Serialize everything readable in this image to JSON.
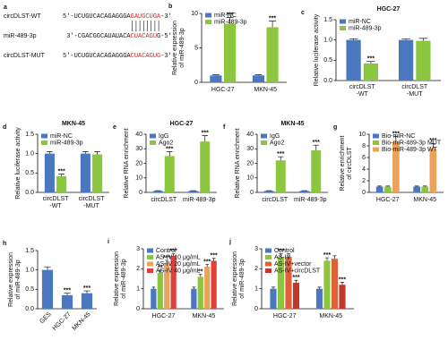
{
  "sequence_panel": {
    "label": "a",
    "rows": [
      {
        "name": "circDLST-WT",
        "prefix": "5'-UCUGUCACAGAGGGA",
        "highlight": "GAUGCUGA",
        "suffix": "-3'"
      },
      {
        "name": "miR-489-3p",
        "prefix": "3'-CGACGGCAUAUACA",
        "highlight": "CUACAGU",
        "suffix": "G-5'"
      },
      {
        "name": "circDLST-MUT",
        "prefix": "5'-UCUGUCACAGAGGGA",
        "highlight": "CUACAGUG",
        "suffix": "-3'"
      }
    ]
  },
  "chart_data": [
    {
      "type": "bar",
      "label": "b",
      "ylabel": [
        "Relative expression",
        "of miR-489-3p"
      ],
      "categories": [
        "HGC-27",
        "MKN-45"
      ],
      "series": [
        {
          "name": "miR-NC",
          "color": "#4a77c0",
          "values": [
            1,
            1
          ],
          "errors": [
            0.1,
            0.1
          ],
          "stars": [
            null,
            null
          ]
        },
        {
          "name": "miR-489-3p",
          "color": "#8cc63e",
          "values": [
            8.5,
            8
          ],
          "errors": [
            0.9,
            0.9
          ],
          "stars": [
            "***",
            "***"
          ]
        }
      ],
      "ylim": [
        0,
        10
      ],
      "yticks": [
        0,
        5,
        10
      ],
      "legend": "top-left"
    },
    {
      "type": "bar",
      "label": "c",
      "title": "HGC-27",
      "ylabel": [
        "Relative luciferase activity"
      ],
      "categories": [
        [
          "circDLST",
          "-WT"
        ],
        [
          "circDLST",
          "-MUT"
        ]
      ],
      "series": [
        {
          "name": "miR-NC",
          "color": "#4a77c0",
          "values": [
            1,
            1
          ],
          "errors": [
            0.03,
            0.03
          ],
          "stars": [
            null,
            null
          ]
        },
        {
          "name": "miR-489-3p",
          "color": "#8cc63e",
          "values": [
            0.42,
            0.98
          ],
          "errors": [
            0.05,
            0.06
          ],
          "stars": [
            "***",
            null
          ]
        }
      ],
      "ylim": [
        0,
        1.5
      ],
      "yticks": [
        {
          "value": 0,
          "label": "0.0"
        },
        {
          "value": 0.5,
          "label": "0.5"
        },
        {
          "value": 1,
          "label": "1.0"
        },
        {
          "value": 1.5,
          "label": "1.5"
        }
      ],
      "legend": "top-left"
    },
    {
      "type": "bar",
      "label": "d",
      "title": "MKN-45",
      "ylabel": [
        "Relative luciferase activity"
      ],
      "categories": [
        [
          "circDLST",
          "-WT"
        ],
        [
          "circDLST",
          "-MUT"
        ]
      ],
      "series": [
        {
          "name": "miR-NC",
          "color": "#4a77c0",
          "values": [
            1,
            1
          ],
          "errors": [
            0.05,
            0.05
          ],
          "stars": [
            null,
            null
          ]
        },
        {
          "name": "miR-489-3p",
          "color": "#8cc63e",
          "values": [
            0.42,
            0.98
          ],
          "errors": [
            0.05,
            0.07
          ],
          "stars": [
            "***",
            null
          ]
        }
      ],
      "ylim": [
        0,
        1.5
      ],
      "yticks": [
        {
          "value": 0,
          "label": "0.0"
        },
        {
          "value": 0.5,
          "label": "0.5"
        },
        {
          "value": 1,
          "label": "1.0"
        },
        {
          "value": 1.5,
          "label": "1.5"
        }
      ],
      "legend": "top-left"
    },
    {
      "type": "bar",
      "label": "e",
      "title": "HGC-27",
      "ylabel": [
        "Relative RNA enrichment"
      ],
      "categories": [
        "circDLST",
        "miR-489-3p"
      ],
      "series": [
        {
          "name": "IgG",
          "color": "#4a77c0",
          "values": [
            1,
            1
          ],
          "errors": [
            0.2,
            0.2
          ],
          "stars": [
            null,
            null
          ]
        },
        {
          "name": "Ago2",
          "color": "#8cc63e",
          "values": [
            25,
            35
          ],
          "errors": [
            3,
            4
          ],
          "stars": [
            "***",
            "***"
          ]
        }
      ],
      "ylim": [
        0,
        40
      ],
      "yticks": [
        0,
        10,
        20,
        30,
        40
      ],
      "legend": "top-left"
    },
    {
      "type": "bar",
      "label": "f",
      "title": "MKN-45",
      "ylabel": [
        "Relative RNA enrichment"
      ],
      "categories": [
        "circDLST",
        "miR-489-3p"
      ],
      "series": [
        {
          "name": "IgG",
          "color": "#4a77c0",
          "values": [
            1,
            1
          ],
          "errors": [
            0.2,
            0.2
          ],
          "stars": [
            null,
            null
          ]
        },
        {
          "name": "Ago2",
          "color": "#8cc63e",
          "values": [
            22,
            29
          ],
          "errors": [
            2.5,
            3.5
          ],
          "stars": [
            "***",
            "***"
          ]
        }
      ],
      "ylim": [
        0,
        40
      ],
      "yticks": [
        0,
        10,
        20,
        30,
        40
      ],
      "legend": "top-left"
    },
    {
      "type": "bar",
      "label": "g",
      "ylabel": [
        "Relative enrichment",
        "of circDLST"
      ],
      "categories": [
        "HGC-27",
        "MKN-45"
      ],
      "series": [
        {
          "name": "Bio-miR-NC",
          "color": "#4a77c0",
          "values": [
            1,
            1
          ],
          "errors": [
            0.1,
            0.1
          ],
          "stars": [
            null,
            null
          ]
        },
        {
          "name": "Bio-miR-489-3p MUT",
          "color": "#8cc63e",
          "values": [
            1,
            1
          ],
          "errors": [
            0.1,
            0.1
          ],
          "stars": [
            null,
            null
          ]
        },
        {
          "name": "Bio-miR-489-3p WT",
          "color": "#eaa35c",
          "values": [
            8.7,
            7.5
          ],
          "errors": [
            0.9,
            0.9
          ],
          "stars": [
            "***",
            "***"
          ]
        }
      ],
      "ylim": [
        0,
        10
      ],
      "yticks": [
        0,
        2,
        4,
        6,
        8,
        10
      ],
      "legend": "top-left"
    },
    {
      "type": "bar",
      "label": "h",
      "ylabel": [
        "Relative expression",
        "of miR-489-3p"
      ],
      "categories": [
        "GES",
        "HGC-27",
        "MKN-45"
      ],
      "color": "#4a77c0",
      "values": [
        1,
        0.35,
        0.4
      ],
      "errors": [
        0.08,
        0.05,
        0.06
      ],
      "stars": [
        null,
        "***",
        "***"
      ],
      "ylim": [
        0,
        1.5
      ],
      "yticks": [
        {
          "value": 0,
          "label": "0.0"
        },
        {
          "value": 0.5,
          "label": "0.5"
        },
        {
          "value": 1,
          "label": "1.0"
        },
        {
          "value": 1.5,
          "label": "1.5"
        }
      ]
    },
    {
      "type": "bar",
      "label": "i",
      "ylabel": [
        "Relative expression",
        "of miR-489-3p"
      ],
      "categories": [
        "HGC-27",
        "MKN-45"
      ],
      "series": [
        {
          "name": "Control",
          "color": "#4a77c0",
          "values": [
            1,
            1
          ],
          "errors": [
            0.08,
            0.08
          ],
          "stars": [
            null,
            null
          ]
        },
        {
          "name": "AS-IV 10 μg/mL",
          "color": "#8cc63e",
          "values": [
            1.8,
            1.6
          ],
          "errors": [
            0.12,
            0.12
          ],
          "stars": [
            "**",
            "**"
          ]
        },
        {
          "name": "AS-IV 20 μg/mL",
          "color": "#eaa35c",
          "values": [
            2.3,
            2.1
          ],
          "errors": [
            0.12,
            0.12
          ],
          "stars": [
            "***",
            "***"
          ]
        },
        {
          "name": "AS-IV 40 μg/mL",
          "color": "#e0403a",
          "values": [
            2.65,
            2.4
          ],
          "errors": [
            0.1,
            0.12
          ],
          "stars": [
            "***",
            "***"
          ]
        }
      ],
      "ylim": [
        0,
        3
      ],
      "yticks": [
        0,
        1,
        2,
        3
      ],
      "legend": "top-left"
    },
    {
      "type": "bar",
      "label": "j",
      "ylabel": [
        "Relative expression",
        "of miR-489-3p"
      ],
      "categories": [
        "HGC-27",
        "MKN-45"
      ],
      "series": [
        {
          "name": "Control",
          "color": "#4a77c0",
          "values": [
            1,
            1
          ],
          "errors": [
            0.08,
            0.08
          ],
          "stars": [
            null,
            null
          ]
        },
        {
          "name": "AS-IV",
          "color": "#8cc63e",
          "values": [
            2.6,
            2.4
          ],
          "errors": [
            0.15,
            0.15
          ],
          "stars": [
            "***",
            "***"
          ]
        },
        {
          "name": "AS-IV+vector",
          "color": "#e0603a",
          "values": [
            2.6,
            2.5
          ],
          "errors": [
            0.15,
            0.15
          ],
          "stars": [
            null,
            null
          ]
        },
        {
          "name": "AS-IV+circDLST",
          "color": "#c0392b",
          "values": [
            1.3,
            1.2
          ],
          "errors": [
            0.12,
            0.12
          ],
          "stars": [
            "***",
            "***"
          ]
        }
      ],
      "ylim": [
        0,
        3
      ],
      "yticks": [
        0,
        1,
        2,
        3
      ],
      "legend": "top-left"
    }
  ]
}
